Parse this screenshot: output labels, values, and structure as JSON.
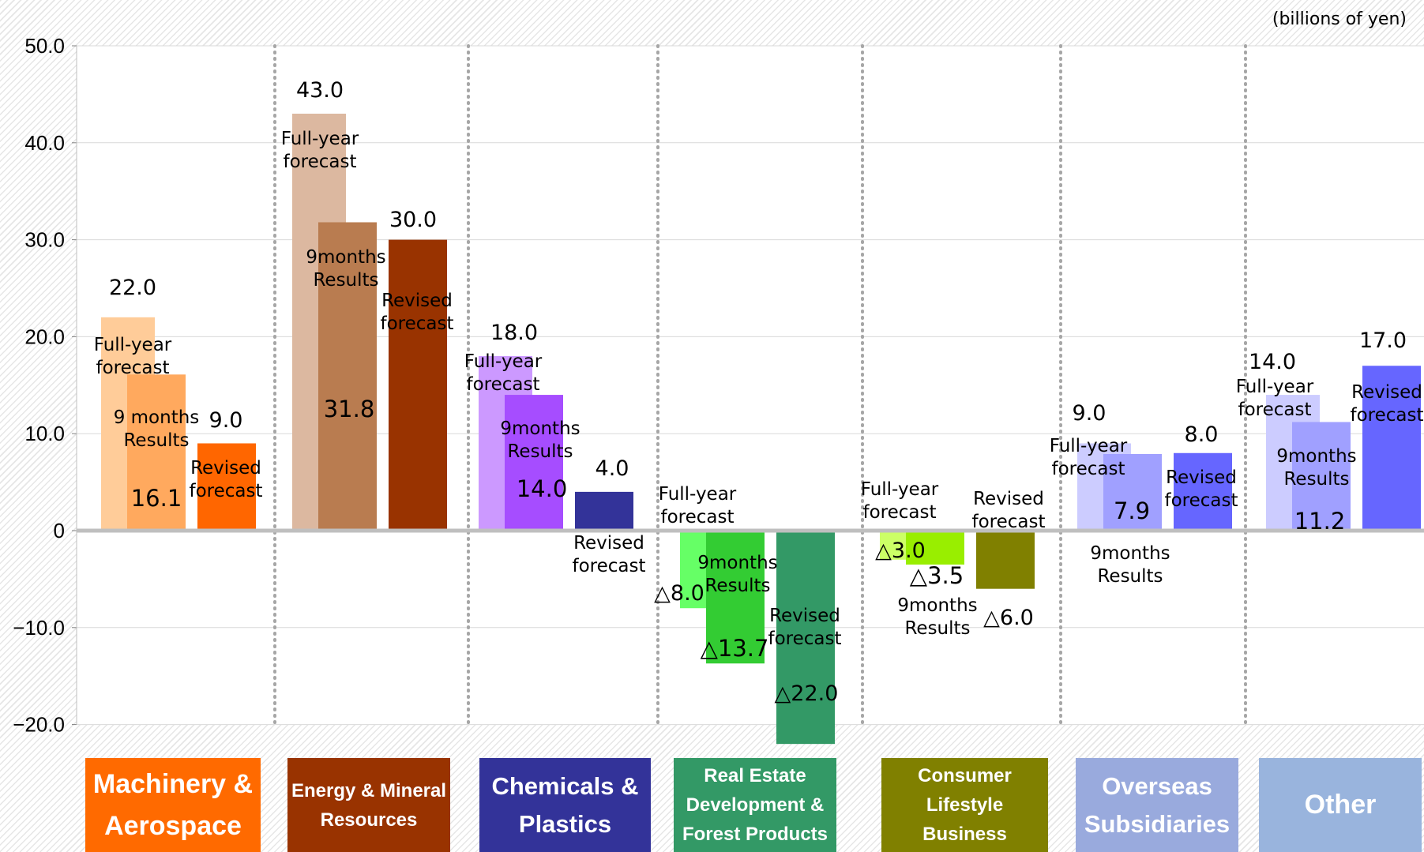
{
  "unit_label": "(billions of yen)",
  "chart_data": {
    "type": "bar",
    "y_ticks": [
      "50.0",
      "40.0",
      "30.0",
      "20.0",
      "10.0",
      "0",
      "-10.0",
      "-20.0"
    ],
    "ylim": [
      -20,
      50
    ],
    "grid": true,
    "categories": [
      {
        "name": "Machinery & Aerospace",
        "color": "#ff6a00",
        "bars": [
          {
            "series": "Full-year forecast",
            "value": 22.0,
            "label": "22.0",
            "caption": "Full-year\nforecast",
            "color": "#ffcc99"
          },
          {
            "series": "9 months Results",
            "value": 16.1,
            "label": "16.1",
            "caption": "9 months\nResults",
            "color": "#ffa95e"
          },
          {
            "series": "Revised forecast",
            "value": 9.0,
            "label": "9.0",
            "caption": "Revised\nforecast",
            "color": "#ff6600"
          }
        ]
      },
      {
        "name": "Energy & Mineral Resources",
        "color": "#993300",
        "bars": [
          {
            "series": "Full-year forecast",
            "value": 43.0,
            "label": "43.0",
            "caption": "Full-year\nforecast",
            "color": "#dcb8a0"
          },
          {
            "series": "9months Results",
            "value": 31.8,
            "label": "31.8",
            "caption": "9months\nResults",
            "color": "#b97c50"
          },
          {
            "series": "Revised forecast",
            "value": 30.0,
            "label": "30.0",
            "caption": "Revised\nforecast",
            "color": "#993300"
          }
        ]
      },
      {
        "name": "Chemicals & Plastics",
        "color": "#333399",
        "bars": [
          {
            "series": "Full-year forecast",
            "value": 18.0,
            "label": "18.0",
            "caption": "Full-year\nforecast",
            "color": "#cc99ff"
          },
          {
            "series": "9months Results",
            "value": 14.0,
            "label": "14.0",
            "caption": "9months\nResults",
            "color": "#a64dff"
          },
          {
            "series": "Revised forecast",
            "value": 4.0,
            "label": "4.0",
            "caption": "Revised\nforecast",
            "color": "#333399"
          }
        ]
      },
      {
        "name": "Real Estate Development & Forest Products",
        "color": "#339966",
        "bars": [
          {
            "series": "Full-year forecast",
            "value": -8.0,
            "label": "△8.0",
            "caption": "Full-year\nforecast",
            "color": "#66ff66"
          },
          {
            "series": "9months Results",
            "value": -13.7,
            "label": "△13.7",
            "caption": "9months\nResults",
            "color": "#33cc33"
          },
          {
            "series": "Revised forecast",
            "value": -22.0,
            "label": "△22.0",
            "caption": "Revised\nforecast",
            "color": "#339966"
          }
        ]
      },
      {
        "name": "Consumer Lifestyle Business",
        "color": "#808000",
        "bars": [
          {
            "series": "Full-year forecast",
            "value": -3.0,
            "label": "△3.0",
            "caption": "Full-year\nforecast",
            "color": "#ccff66"
          },
          {
            "series": "9months Results",
            "value": -3.5,
            "label": "△3.5",
            "caption": "9months\nResults",
            "color": "#99ee00"
          },
          {
            "series": "Revised forecast",
            "value": -6.0,
            "label": "△6.0",
            "caption": "Revised\nforecast",
            "color": "#808000"
          }
        ]
      },
      {
        "name": "Overseas Subsidiaries",
        "color": "#99aadd",
        "bars": [
          {
            "series": "Full-year forecast",
            "value": 9.0,
            "label": "9.0",
            "caption": "Full-year\nforecast",
            "color": "#ccccff"
          },
          {
            "series": "9months Results",
            "value": 7.9,
            "label": "7.9",
            "caption": "9months\nResults",
            "color": "#a0a0ff"
          },
          {
            "series": "Revised forecast",
            "value": 8.0,
            "label": "8.0",
            "caption": "Revised\nforecast",
            "color": "#6666ff"
          }
        ]
      },
      {
        "name": "Other",
        "color": "#99b4dd",
        "bars": [
          {
            "series": "Full-year forecast",
            "value": 14.0,
            "label": "14.0",
            "caption": "Full-year\nforecast",
            "color": "#ccccff"
          },
          {
            "series": "9months Results",
            "value": 11.2,
            "label": "11.2",
            "caption": "9months\nResults",
            "color": "#a0a0ff"
          },
          {
            "series": "Revised forecast",
            "value": 17.0,
            "label": "17.0",
            "caption": "Revised\nforecast",
            "color": "#6666ff"
          }
        ]
      }
    ]
  }
}
